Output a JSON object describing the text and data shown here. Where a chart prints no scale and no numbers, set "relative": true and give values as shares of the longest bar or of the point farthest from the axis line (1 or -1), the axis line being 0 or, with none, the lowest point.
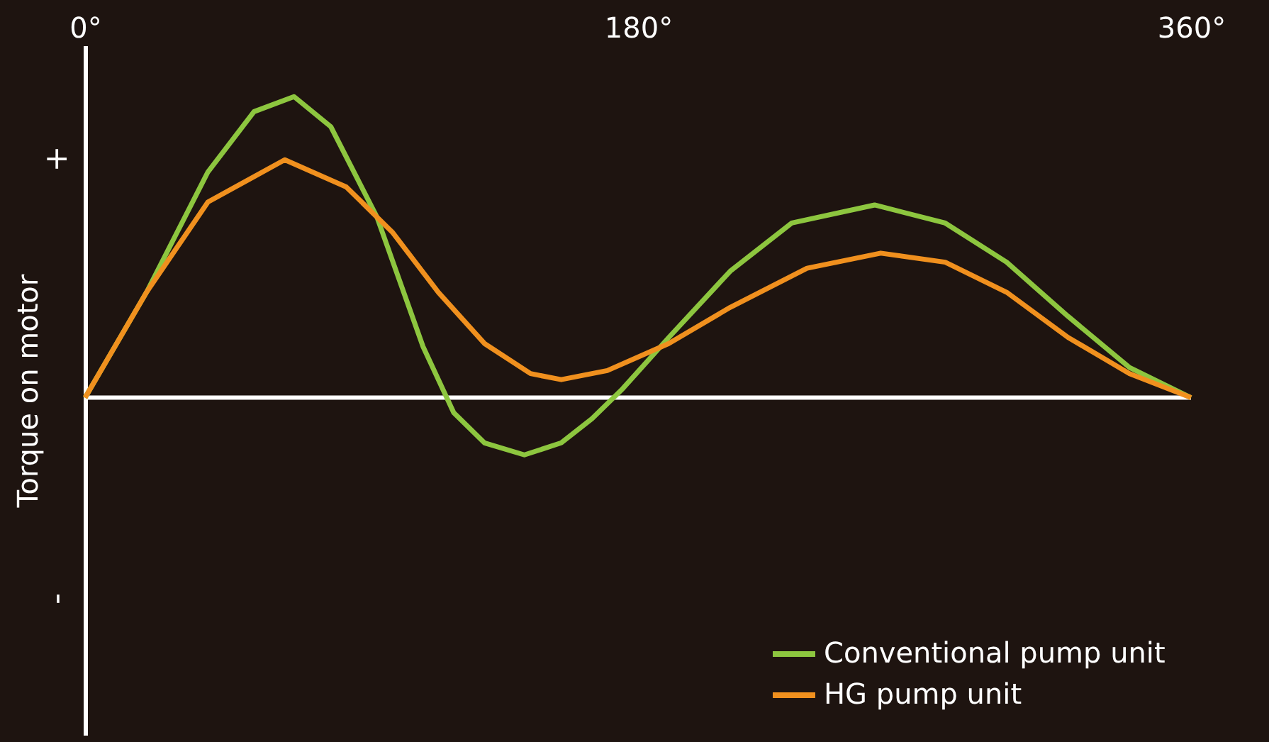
{
  "chart_data": {
    "type": "line",
    "relative": true,
    "ylabel": "Torque on motor",
    "annotations": [
      "+",
      "-"
    ],
    "xlim": [
      0,
      360
    ],
    "xticks": [
      {
        "value": 0,
        "label": "0°"
      },
      {
        "value": 180,
        "label": "180°"
      },
      {
        "value": 360,
        "label": "360°"
      }
    ],
    "tick_labels": "x",
    "legend": "bottom right",
    "grid": false,
    "series": [
      {
        "name": "Conventional pump unit",
        "color": "#8dc63f",
        "x": [
          0,
          20,
          40,
          55,
          68,
          80,
          95,
          110,
          120,
          130,
          143,
          155,
          165,
          175,
          190,
          210,
          230,
          257,
          280,
          300,
          320,
          340,
          360
        ],
        "values": [
          0,
          0.35,
          0.75,
          0.95,
          1.0,
          0.9,
          0.6,
          0.17,
          -0.05,
          -0.15,
          -0.19,
          -0.15,
          -0.07,
          0.03,
          0.2,
          0.42,
          0.58,
          0.64,
          0.58,
          0.45,
          0.27,
          0.1,
          0
        ]
      },
      {
        "name": "HG pump unit",
        "color": "#f0901e",
        "x": [
          0,
          20,
          40,
          65,
          85,
          100,
          115,
          130,
          145,
          155,
          170,
          190,
          210,
          235,
          259,
          280,
          300,
          320,
          340,
          360
        ],
        "values": [
          0,
          0.35,
          0.65,
          0.79,
          0.7,
          0.55,
          0.35,
          0.18,
          0.08,
          0.06,
          0.09,
          0.18,
          0.3,
          0.43,
          0.48,
          0.45,
          0.35,
          0.2,
          0.08,
          0
        ]
      }
    ]
  }
}
